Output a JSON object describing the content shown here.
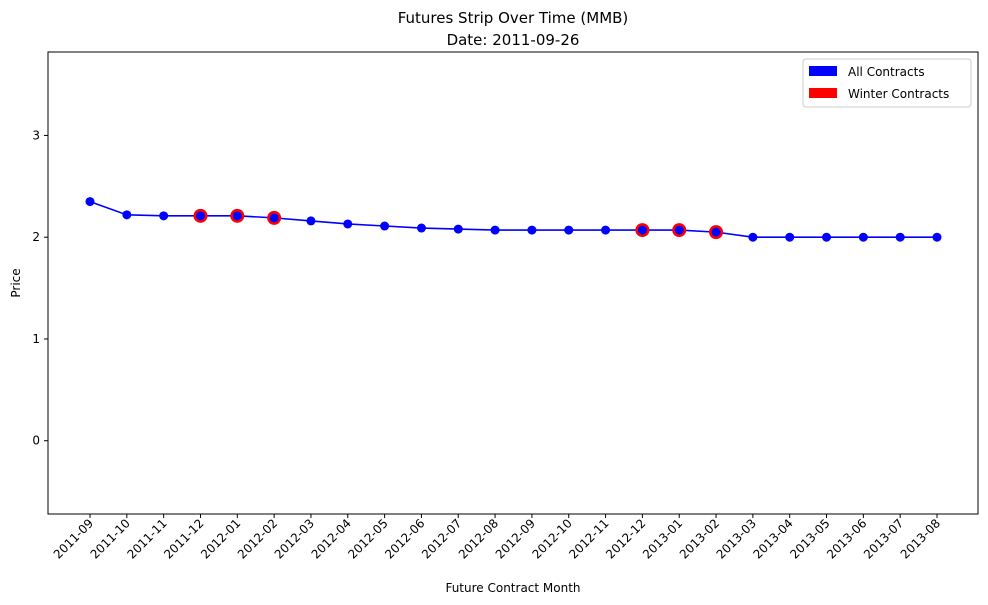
{
  "chart_data": {
    "type": "line",
    "title": "Futures Strip Over Time (MMB)",
    "subtitle": "Date: 2011-09-26",
    "xlabel": "Future Contract Month",
    "ylabel": "Price",
    "categories": [
      "2011-09",
      "2011-10",
      "2011-11",
      "2011-12",
      "2012-01",
      "2012-02",
      "2012-03",
      "2012-04",
      "2012-05",
      "2012-06",
      "2012-07",
      "2012-08",
      "2012-09",
      "2012-10",
      "2012-11",
      "2012-12",
      "2013-01",
      "2013-02",
      "2013-03",
      "2013-04",
      "2013-05",
      "2013-06",
      "2013-07",
      "2013-08"
    ],
    "values": [
      2.35,
      2.22,
      2.21,
      2.21,
      2.21,
      2.19,
      2.16,
      2.13,
      2.11,
      2.09,
      2.08,
      2.07,
      2.07,
      2.07,
      2.07,
      2.07,
      2.07,
      2.05,
      2.0,
      2.0,
      2.0,
      2.0,
      2.0,
      2.0
    ],
    "highlighted": [
      "2011-12",
      "2012-01",
      "2012-02",
      "2012-12",
      "2013-01",
      "2013-02"
    ],
    "ylim": [
      -0.72,
      3.82
    ],
    "yticks": [
      0,
      1,
      2,
      3
    ],
    "grid": false,
    "legend": {
      "placement": "top-right",
      "items": [
        {
          "label": "All Contracts",
          "color": "#0000ff"
        },
        {
          "label": "Winter Contracts",
          "color": "#ff0000"
        }
      ]
    },
    "colors": {
      "line": "#0000ff",
      "highlight": "#ff0000"
    }
  }
}
